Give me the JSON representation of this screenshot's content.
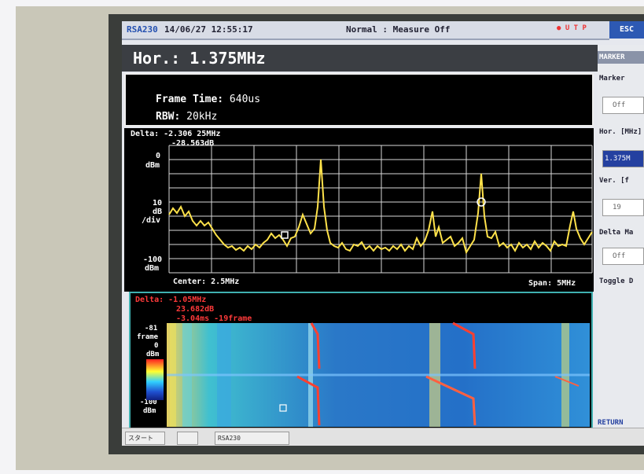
{
  "status": {
    "instrument": "RSA230",
    "datetime": "14/06/27 12:55:17",
    "mode": "Normal : Measure Off",
    "indicators": "U T P",
    "esc_label": "ESC"
  },
  "header": {
    "hor_label": "Hor.: 1.375MHz"
  },
  "frame_info": {
    "frame_time_label": "Frame Time:",
    "frame_time_value": "640us",
    "rbw_label": "RBW:",
    "rbw_value": "20kHz"
  },
  "spectrum": {
    "delta_line1": "Delta: -2.306 25MHz",
    "delta_line2": "-28.563dB",
    "ref_top": "0",
    "ref_top_unit": "dBm",
    "scale_value": "10",
    "scale_unit1": "dB",
    "scale_unit2": "/div",
    "ref_bottom": "-100",
    "ref_bottom_unit": "dBm",
    "center": "Center: 2.5MHz",
    "span": "Span: 5MHz",
    "trace_color": "#ffe24a"
  },
  "waterfall": {
    "delta_line1": "Delta: -1.05MHz",
    "delta_line2": "23.682dB",
    "delta_line3": "-3.04ms  -19frame",
    "frame_label1": "-81",
    "frame_label2": "frame",
    "top_level": "0",
    "top_unit": "dBm",
    "bottom_level": "-100",
    "bottom_unit": "dBm"
  },
  "side_menu": {
    "marker": "MARKER",
    "marker_item": "Marker",
    "marker_value": "Off",
    "hor": "Hor. [MHz]",
    "hor_value": "1.375M",
    "ver": "Ver. [f",
    "ver_value": "19",
    "delta_marker": "Delta Ma",
    "delta_value": "Off",
    "toggle": "Toggle D",
    "return_label": "RETURN"
  },
  "taskbar": {
    "item1": "スタート",
    "item2": "",
    "item3": "RSA230"
  }
}
